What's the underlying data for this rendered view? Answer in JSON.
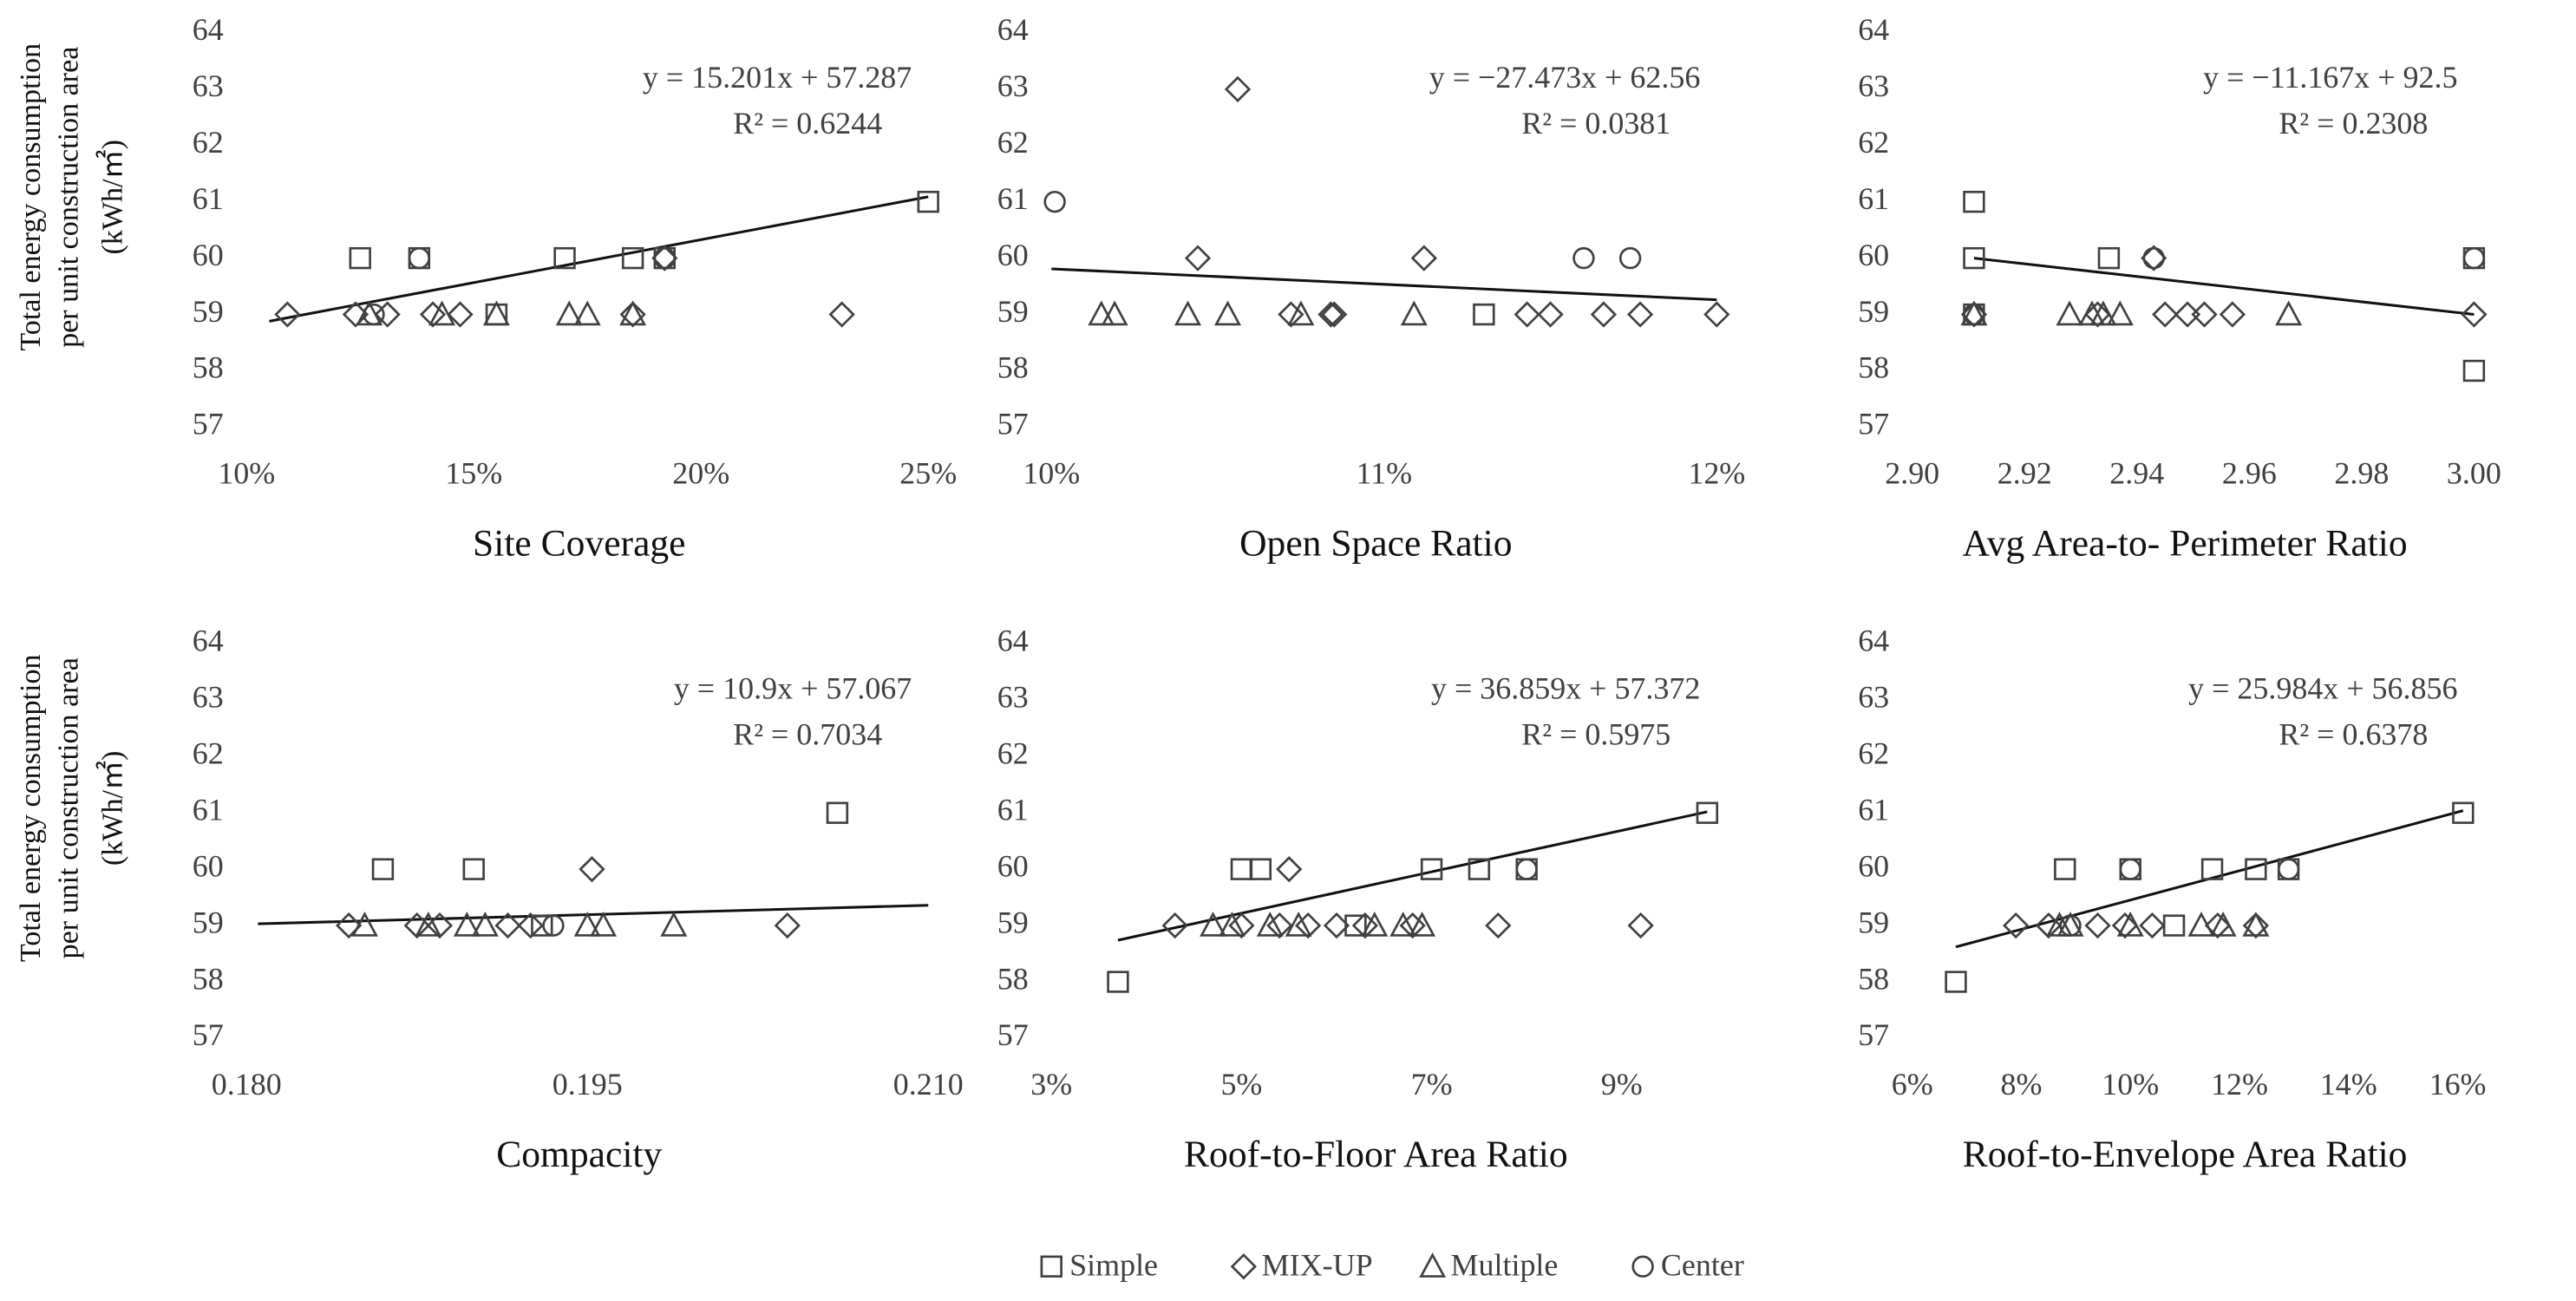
{
  "chart_data": [
    {
      "type": "scatter",
      "x_label": "Site Coverage",
      "y_label": [
        "Total energy consumption",
        "per unit construction area",
        "(kWh/㎡)"
      ],
      "equation": "y = 15.201x + 57.287",
      "r_squared": "R² = 0.6244",
      "xlim": [
        0.1,
        0.25
      ],
      "xticks": [
        {
          "value": 0.1,
          "label": "10%"
        },
        {
          "value": 0.15,
          "label": "15%"
        },
        {
          "value": 0.2,
          "label": "20%"
        },
        {
          "value": 0.25,
          "label": "25%"
        }
      ],
      "ylim": [
        57,
        64
      ],
      "yticks": [
        57,
        58,
        59,
        60,
        61,
        62,
        63,
        64
      ],
      "trendline": {
        "x": [
          0.105,
          0.25
        ],
        "y": [
          58.88,
          61.09
        ]
      },
      "series": [
        {
          "name": "Simple",
          "marker": "square",
          "color": "#404040",
          "x": [
            0.125,
            0.138,
            0.155,
            0.17,
            0.185,
            0.192,
            0.25
          ],
          "values": [
            60,
            60,
            59,
            60,
            60,
            60,
            61
          ]
        },
        {
          "name": "MIX-UP",
          "marker": "diamond",
          "color": "#404040",
          "x": [
            0.109,
            0.124,
            0.131,
            0.141,
            0.147,
            0.185,
            0.231,
            0.192
          ],
          "values": [
            59,
            59,
            59,
            59,
            59,
            59,
            59,
            60
          ]
        },
        {
          "name": "Multiple",
          "marker": "triangle",
          "color": "#404040",
          "x": [
            0.127,
            0.143,
            0.155,
            0.171,
            0.175,
            0.185
          ],
          "values": [
            59,
            59,
            59,
            59,
            59,
            59
          ]
        },
        {
          "name": "Center",
          "marker": "circle",
          "color": "#404040",
          "x": [
            0.138,
            0.192,
            0.128
          ],
          "values": [
            60,
            60,
            59
          ]
        }
      ]
    },
    {
      "type": "scatter",
      "x_label": "Open Space Ratio",
      "equation": "y = −27.473x  + 62.56",
      "r_squared": "R² = 0.0381",
      "xlim": [
        0.1,
        0.12
      ],
      "xticks": [
        {
          "value": 0.1,
          "label": "10%"
        },
        {
          "value": 0.11,
          "label": "11%"
        },
        {
          "value": 0.12,
          "label": "12%"
        }
      ],
      "ylim": [
        57,
        64
      ],
      "yticks": [
        57,
        58,
        59,
        60,
        61,
        62,
        63,
        64
      ],
      "trendline": {
        "x": [
          0.1,
          0.12
        ],
        "y": [
          59.81,
          59.26
        ]
      },
      "series": [
        {
          "name": "Simple",
          "marker": "square",
          "color": "#404040",
          "x": [
            0.113
          ],
          "values": [
            59
          ]
        },
        {
          "name": "MIX-UP",
          "marker": "diamond",
          "color": "#404040",
          "x": [
            0.1056,
            0.1044,
            0.1112,
            0.1072,
            0.1084,
            0.1085,
            0.1143,
            0.115,
            0.1166,
            0.1177,
            0.12
          ],
          "values": [
            63,
            60,
            60,
            59,
            59,
            59,
            59,
            59,
            59,
            59,
            59
          ]
        },
        {
          "name": "Multiple",
          "marker": "triangle",
          "color": "#404040",
          "x": [
            0.1015,
            0.1019,
            0.1041,
            0.1053,
            0.1075,
            0.1109
          ],
          "values": [
            59,
            59,
            59,
            59,
            59,
            59
          ]
        },
        {
          "name": "Center",
          "marker": "circle",
          "color": "#404040",
          "x": [
            0.1001,
            0.116,
            0.1174
          ],
          "values": [
            61,
            60,
            60
          ]
        }
      ]
    },
    {
      "type": "scatter",
      "x_label": "Avg Area-to- Perimeter Ratio",
      "equation": "y = −11.167x  + 92.5",
      "r_squared": "R² = 0.2308",
      "xlim": [
        2.9,
        3.0
      ],
      "xticks": [
        {
          "value": 2.9,
          "label": "2.90"
        },
        {
          "value": 2.92,
          "label": "2.92"
        },
        {
          "value": 2.94,
          "label": "2.94"
        },
        {
          "value": 2.96,
          "label": "2.96"
        },
        {
          "value": 2.98,
          "label": "2.98"
        },
        {
          "value": 3.0,
          "label": "3.00"
        }
      ],
      "ylim": [
        57,
        64
      ],
      "yticks": [
        57,
        58,
        59,
        60,
        61,
        62,
        63,
        64
      ],
      "trendline": {
        "x": [
          2.911,
          3.0
        ],
        "y": [
          60.0,
          59.0
        ]
      },
      "series": [
        {
          "name": "Simple",
          "marker": "square",
          "color": "#404040",
          "x": [
            2.911,
            2.911,
            2.911,
            2.935,
            3.0,
            3.0
          ],
          "values": [
            61,
            60,
            59,
            60,
            60,
            58
          ]
        },
        {
          "name": "MIX-UP",
          "marker": "diamond",
          "color": "#404040",
          "x": [
            2.911,
            2.943,
            2.945,
            2.949,
            2.952,
            2.957,
            3.0,
            2.933
          ],
          "values": [
            59,
            60,
            59,
            59,
            59,
            59,
            59,
            59
          ]
        },
        {
          "name": "Multiple",
          "marker": "triangle",
          "color": "#404040",
          "x": [
            2.911,
            2.928,
            2.932,
            2.934,
            2.937,
            2.967
          ],
          "values": [
            59,
            59,
            59,
            59,
            59,
            59
          ]
        },
        {
          "name": "Center",
          "marker": "circle",
          "color": "#404040",
          "x": [
            2.943,
            3.0,
            2.911
          ],
          "values": [
            60,
            60,
            59
          ]
        }
      ]
    },
    {
      "type": "scatter",
      "x_label": "Compacity",
      "y_label": [
        "Total energy consumption",
        "per unit construction area",
        "(kWh/㎡)"
      ],
      "equation": "y = 10.9x + 57.067",
      "r_squared": "R² = 0.7034",
      "xlim": [
        0.18,
        0.21
      ],
      "xticks": [
        {
          "value": 0.18,
          "label": "0.180"
        },
        {
          "value": 0.195,
          "label": "0.195"
        },
        {
          "value": 0.21,
          "label": "0.210"
        }
      ],
      "ylim": [
        57,
        64
      ],
      "yticks": [
        57,
        58,
        59,
        60,
        61,
        62,
        63,
        64
      ],
      "trendline": {
        "x": [
          0.1805,
          0.21
        ],
        "y": [
          59.03,
          59.36
        ]
      },
      "series": [
        {
          "name": "Simple",
          "marker": "square",
          "color": "#404040",
          "x": [
            0.186,
            0.19,
            0.206,
            0.193
          ],
          "values": [
            60,
            60,
            61,
            59
          ]
        },
        {
          "name": "MIX-UP",
          "marker": "diamond",
          "color": "#404040",
          "x": [
            0.1845,
            0.1875,
            0.1885,
            0.1915,
            0.1925,
            0.1952,
            0.2038
          ],
          "values": [
            59,
            59,
            59,
            59,
            59,
            60,
            59
          ]
        },
        {
          "name": "Multiple",
          "marker": "triangle",
          "color": "#404040",
          "x": [
            0.1852,
            0.188,
            0.1897,
            0.1905,
            0.195,
            0.1957,
            0.1988
          ],
          "values": [
            59,
            59,
            59,
            59,
            59,
            59,
            59
          ]
        },
        {
          "name": "Center",
          "marker": "circle",
          "color": "#404040",
          "x": [
            0.1935
          ],
          "values": [
            59
          ]
        }
      ]
    },
    {
      "type": "scatter",
      "x_label": "Roof-to-Floor Area Ratio",
      "equation": "y = 36.859x + 57.372",
      "r_squared": "R² = 0.5975",
      "xlim": [
        0.03,
        0.1
      ],
      "xticks": [
        {
          "value": 0.03,
          "label": "3%"
        },
        {
          "value": 0.05,
          "label": "5%"
        },
        {
          "value": 0.07,
          "label": "7%"
        },
        {
          "value": 0.09,
          "label": "9%"
        }
      ],
      "ylim": [
        57,
        64
      ],
      "yticks": [
        57,
        58,
        59,
        60,
        61,
        62,
        63,
        64
      ],
      "trendline": {
        "x": [
          0.037,
          0.099
        ],
        "y": [
          58.74,
          61.02
        ]
      },
      "series": [
        {
          "name": "Simple",
          "marker": "square",
          "color": "#404040",
          "x": [
            0.037,
            0.05,
            0.052,
            0.062,
            0.07,
            0.075,
            0.08,
            0.099
          ],
          "values": [
            58,
            60,
            60,
            59,
            60,
            60,
            60,
            61
          ]
        },
        {
          "name": "MIX-UP",
          "marker": "diamond",
          "color": "#404040",
          "x": [
            0.043,
            0.05,
            0.055,
            0.054,
            0.057,
            0.06,
            0.063,
            0.068,
            0.077,
            0.092
          ],
          "values": [
            59,
            59,
            60,
            59,
            59,
            59,
            59,
            59,
            59,
            59
          ]
        },
        {
          "name": "Multiple",
          "marker": "triangle",
          "color": "#404040",
          "x": [
            0.047,
            0.049,
            0.053,
            0.056,
            0.064,
            0.067,
            0.069
          ],
          "values": [
            59,
            59,
            59,
            59,
            59,
            59,
            59
          ]
        },
        {
          "name": "Center",
          "marker": "circle",
          "color": "#404040",
          "x": [
            0.08
          ],
          "values": [
            60
          ]
        }
      ]
    },
    {
      "type": "scatter",
      "x_label": "Roof-to-Envelope Area Ratio",
      "equation": "y = 25.984x + 56.856",
      "r_squared": "R² = 0.6378",
      "xlim": [
        0.06,
        0.163
      ],
      "xticks": [
        {
          "value": 0.06,
          "label": "6%"
        },
        {
          "value": 0.08,
          "label": "8%"
        },
        {
          "value": 0.1,
          "label": "10%"
        },
        {
          "value": 0.12,
          "label": "12%"
        },
        {
          "value": 0.14,
          "label": "14%"
        },
        {
          "value": 0.16,
          "label": "16%"
        }
      ],
      "ylim": [
        57,
        64
      ],
      "yticks": [
        57,
        58,
        59,
        60,
        61,
        62,
        63,
        64
      ],
      "trendline": {
        "x": [
          0.068,
          0.161
        ],
        "y": [
          58.62,
          61.04
        ]
      },
      "series": [
        {
          "name": "Simple",
          "marker": "square",
          "color": "#404040",
          "x": [
            0.068,
            0.088,
            0.1,
            0.108,
            0.115,
            0.123,
            0.129,
            0.161
          ],
          "values": [
            58,
            60,
            60,
            59,
            60,
            60,
            60,
            61
          ]
        },
        {
          "name": "MIX-UP",
          "marker": "diamond",
          "color": "#404040",
          "x": [
            0.079,
            0.085,
            0.094,
            0.099,
            0.104,
            0.116,
            0.123
          ],
          "values": [
            59,
            59,
            59,
            59,
            59,
            59,
            59
          ]
        },
        {
          "name": "Multiple",
          "marker": "triangle",
          "color": "#404040",
          "x": [
            0.087,
            0.089,
            0.1,
            0.113,
            0.117,
            0.123
          ],
          "values": [
            59,
            59,
            59,
            59,
            59,
            59
          ]
        },
        {
          "name": "Center",
          "marker": "circle",
          "color": "#404040",
          "x": [
            0.1,
            0.129,
            0.089
          ],
          "values": [
            60,
            60,
            59
          ]
        }
      ]
    }
  ]
}
